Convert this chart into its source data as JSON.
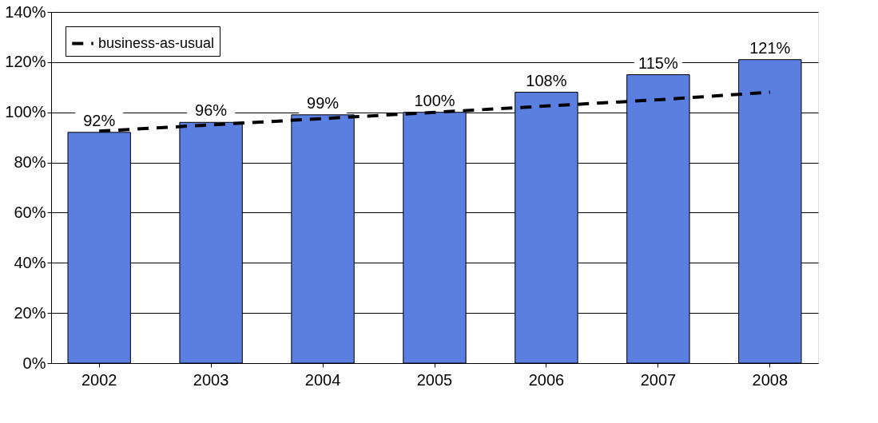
{
  "chart_data": {
    "type": "bar",
    "categories": [
      "2002",
      "2003",
      "2004",
      "2005",
      "2006",
      "2007",
      "2008"
    ],
    "series": [
      {
        "color": "#5b7fe0",
        "values": [
          92,
          96,
          99,
          100,
          108,
          115,
          121
        ],
        "value_labels": [
          "92%",
          "96%",
          "99%",
          "100%",
          "108%",
          "115%",
          "121%"
        ]
      },
      {
        "type": "line",
        "name": "business-as-usual",
        "color": "#000000",
        "line_style": "dashed",
        "values": [
          92.5,
          95,
          97.5,
          100,
          102.5,
          105,
          108
        ]
      }
    ],
    "ylim": [
      0,
      140
    ],
    "yticks": [
      {
        "value": 0,
        "label": "0%"
      },
      {
        "value": 20,
        "label": "20%"
      },
      {
        "value": 40,
        "label": "40%"
      },
      {
        "value": 60,
        "label": "60%"
      },
      {
        "value": 80,
        "label": "80%"
      },
      {
        "value": 100,
        "label": "100%"
      },
      {
        "value": 120,
        "label": "120%"
      },
      {
        "value": 140,
        "label": "140%"
      }
    ],
    "grid": "y",
    "legend": "top left"
  }
}
